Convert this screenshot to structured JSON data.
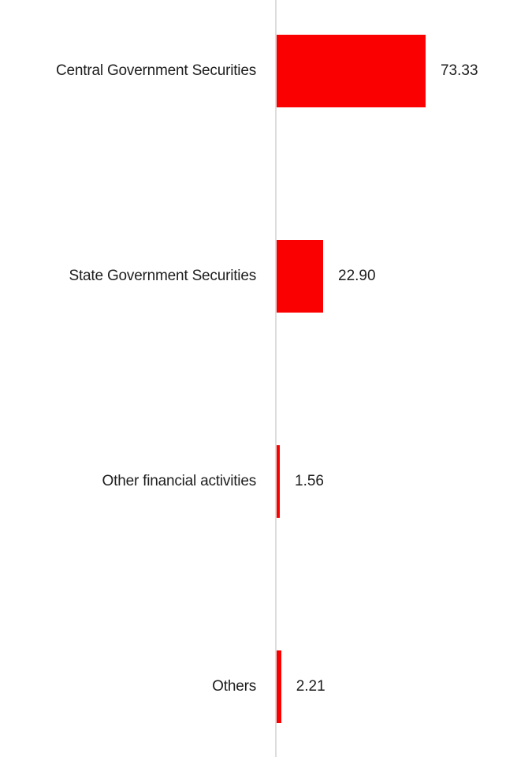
{
  "chart_data": {
    "type": "bar",
    "orientation": "horizontal",
    "title": "",
    "xlabel": "",
    "ylabel": "",
    "grid": false,
    "legend": false,
    "categories": [
      "Central Government Securities",
      "State Government Securities",
      "Other financial activities",
      "Others"
    ],
    "values": [
      73.33,
      22.9,
      1.56,
      2.21
    ],
    "value_labels": [
      "73.33",
      "22.90",
      "1.56",
      "2.21"
    ],
    "xlim": [
      0,
      118
    ],
    "colors": {
      "bar": "#fb0000",
      "baseline": "#dcdcdc",
      "text": "#1d1d1d"
    }
  }
}
